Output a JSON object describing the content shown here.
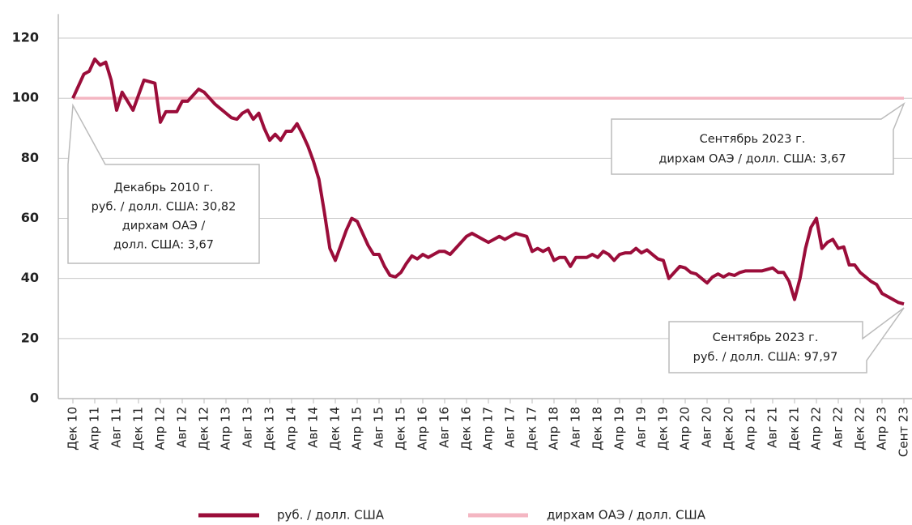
{
  "chart_data": {
    "type": "line",
    "categories": [
      "Дек 10",
      null,
      null,
      null,
      "Апр 11",
      null,
      null,
      null,
      "Авг 11",
      null,
      null,
      null,
      "Дек 11",
      null,
      null,
      null,
      "Апр 12",
      null,
      null,
      null,
      "Авг 12",
      null,
      null,
      null,
      "Дек 12",
      null,
      null,
      null,
      "Апр 13",
      null,
      null,
      null,
      "Авг 13",
      null,
      null,
      null,
      "Дек 13",
      null,
      null,
      null,
      "Апр 14",
      null,
      null,
      null,
      "Авг 14",
      null,
      null,
      null,
      "Дек 14",
      null,
      null,
      null,
      "Апр 15",
      null,
      null,
      null,
      "Авг 15",
      null,
      null,
      null,
      "Дек 15",
      null,
      null,
      null,
      "Апр 16",
      null,
      null,
      null,
      "Авг 16",
      null,
      null,
      null,
      "Дек 16",
      null,
      null,
      null,
      "Апр 17",
      null,
      null,
      null,
      "Авг 17",
      null,
      null,
      null,
      "Дек 17",
      null,
      null,
      null,
      "Апр 18",
      null,
      null,
      null,
      "Авг 18",
      null,
      null,
      null,
      "Дек 18",
      null,
      null,
      null,
      "Апр 19",
      null,
      null,
      null,
      "Авг 19",
      null,
      null,
      null,
      "Дек 19",
      null,
      null,
      null,
      "Апр 20",
      null,
      null,
      null,
      "Авг 20",
      null,
      null,
      null,
      "Дек 20",
      null,
      null,
      null,
      "Апр 21",
      null,
      null,
      null,
      "Авг 21",
      null,
      null,
      null,
      "Дек 21",
      null,
      null,
      null,
      "Апр 22",
      null,
      null,
      null,
      "Авг 22",
      null,
      null,
      null,
      "Дек 22",
      null,
      null,
      null,
      "Апр 23",
      null,
      null,
      null,
      "Сент 23"
    ],
    "series": [
      {
        "name": "руб. / долл. США",
        "color": "#9b0d3a",
        "values": [
          100,
          104,
          108,
          109,
          113,
          111,
          112,
          106,
          96,
          102,
          99,
          96,
          101,
          106,
          105.5,
          105,
          92,
          95.5,
          95.5,
          95.5,
          99,
          99,
          101,
          103,
          102,
          100,
          98,
          96.5,
          95,
          93.5,
          93,
          95,
          96,
          93,
          95,
          90,
          86,
          88,
          86,
          89,
          89,
          91.5,
          88,
          84,
          79,
          73,
          62,
          50,
          46,
          51,
          56,
          60,
          59,
          55,
          51,
          48,
          48,
          44,
          41,
          40.5,
          42,
          45,
          47.5,
          46.5,
          48,
          47,
          48,
          49,
          49,
          48,
          50,
          52,
          54,
          55,
          54,
          53,
          52,
          53,
          54,
          53,
          54,
          55,
          54.5,
          54,
          49,
          50,
          49,
          50,
          46,
          47,
          47,
          44,
          47,
          47,
          47,
          48,
          47,
          49,
          48,
          46,
          48,
          48.5,
          48.5,
          50,
          48.5,
          49.5,
          48,
          46.5,
          46,
          40,
          42,
          44,
          43.5,
          42,
          41.5,
          40,
          38.5,
          40.5,
          41.5,
          40.5,
          41.5,
          41,
          42,
          42.5,
          42.5,
          42.5,
          42.5,
          43,
          43.5,
          42,
          42,
          39,
          33,
          40,
          50,
          57,
          60,
          50,
          52,
          53,
          50,
          50.5,
          44.5,
          44.5,
          42,
          40.5,
          39,
          38,
          35,
          34,
          33,
          32,
          31.5
        ]
      },
      {
        "name": "дирхам ОАЭ / долл. США",
        "color": "#f4b6c2",
        "values": [
          100,
          100,
          100,
          100,
          100,
          100,
          100,
          100,
          100,
          100,
          100,
          100,
          100,
          100,
          100,
          100,
          100,
          100,
          100,
          100,
          100,
          100,
          100,
          100,
          100,
          100,
          100,
          100,
          100,
          100,
          100,
          100,
          100,
          100,
          100,
          100,
          100,
          100,
          100,
          100,
          100,
          100,
          100,
          100,
          100,
          100,
          100,
          100,
          100,
          100,
          100,
          100,
          100,
          100,
          100,
          100,
          100,
          100,
          100,
          100,
          100,
          100,
          100,
          100,
          100,
          100,
          100,
          100,
          100,
          100,
          100,
          100,
          100,
          100,
          100,
          100,
          100,
          100,
          100,
          100,
          100,
          100,
          100,
          100,
          100,
          100,
          100,
          100,
          100,
          100,
          100,
          100,
          100,
          100,
          100,
          100,
          100,
          100,
          100,
          100,
          100,
          100,
          100,
          100,
          100,
          100,
          100,
          100,
          100,
          100,
          100,
          100,
          100,
          100,
          100,
          100,
          100,
          100,
          100,
          100,
          100,
          100,
          100,
          100,
          100,
          100,
          100,
          100,
          100,
          100,
          100,
          100,
          100,
          100,
          100,
          100,
          100,
          100,
          100,
          100,
          100,
          100,
          100,
          100,
          100,
          100,
          100,
          100,
          100,
          100,
          100,
          100,
          100
        ]
      }
    ],
    "ylim": [
      0,
      128
    ],
    "yticks": [
      0,
      20,
      40,
      60,
      80,
      100,
      120
    ],
    "grid": true,
    "annotations": [
      {
        "lines": [
          "Декабрь 2010 г.",
          "руб. / долл. США: 30,82",
          "дирхам ОАЭ /",
          "долл. США: 3,67"
        ]
      },
      {
        "lines": [
          "Сентябрь 2023 г.",
          "дирхам ОАЭ / долл. США: 3,67"
        ]
      },
      {
        "lines": [
          "Сентябрь 2023 г.",
          "руб. / долл. США: 97,97"
        ]
      }
    ],
    "legend": "bottom"
  }
}
